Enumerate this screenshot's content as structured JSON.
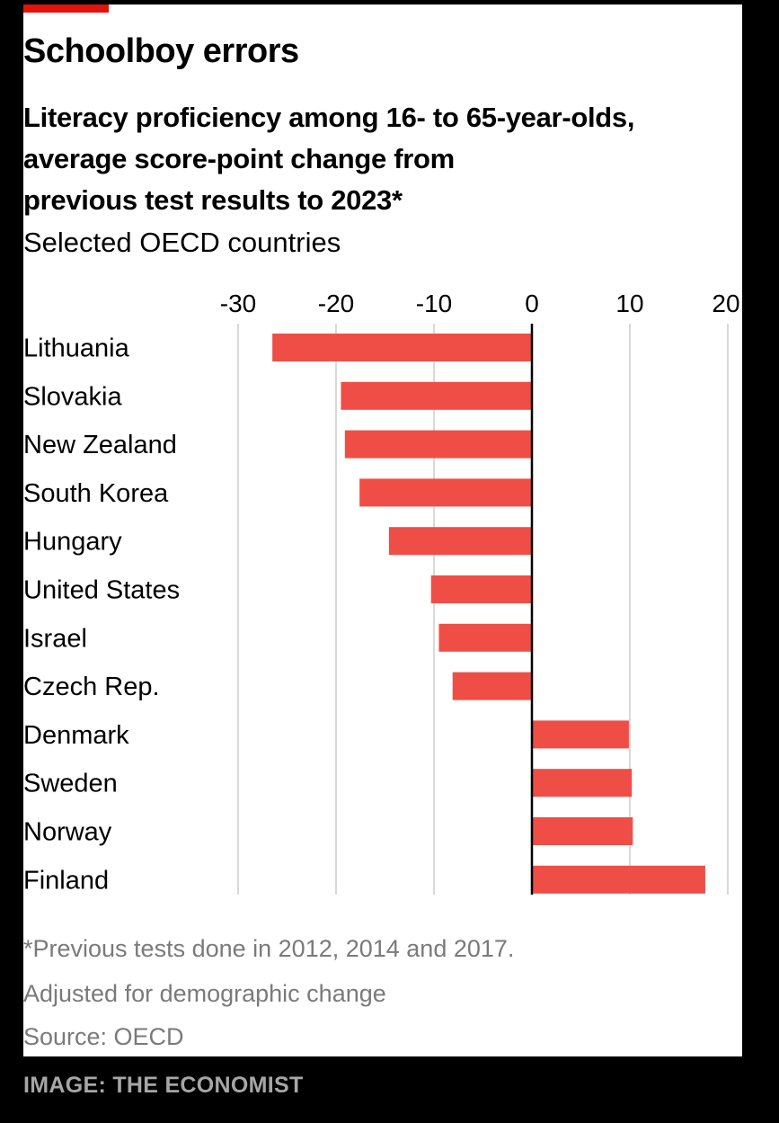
{
  "header": {
    "title": "Schoolboy errors",
    "subtitle_lines": [
      "Literacy proficiency among 16- to 65-year-olds,",
      "average score-point change from",
      "previous test results to 2023*"
    ],
    "subtitle2": "Selected OECD countries"
  },
  "chart_data": {
    "type": "bar",
    "orientation": "horizontal",
    "categories": [
      "Lithuania",
      "Slovakia",
      "New Zealand",
      "South Korea",
      "Hungary",
      "United States",
      "Israel",
      "Czech Rep.",
      "Denmark",
      "Sweden",
      "Norway",
      "Finland"
    ],
    "values": [
      -26.5,
      -19.5,
      -19.1,
      -17.6,
      -14.6,
      -10.3,
      -9.5,
      -8.1,
      9.9,
      10.2,
      10.3,
      17.7
    ],
    "xlim": [
      -30,
      20
    ],
    "xticks": [
      -30,
      -20,
      -10,
      0,
      10,
      20
    ],
    "grid": true,
    "bar_color": "#ef4e46"
  },
  "footer": {
    "notes": [
      "*Previous tests done in 2012, 2014 and 2017.",
      "Adjusted for demographic change",
      "Source: OECD"
    ]
  },
  "caption": "IMAGE: THE ECONOMIST"
}
